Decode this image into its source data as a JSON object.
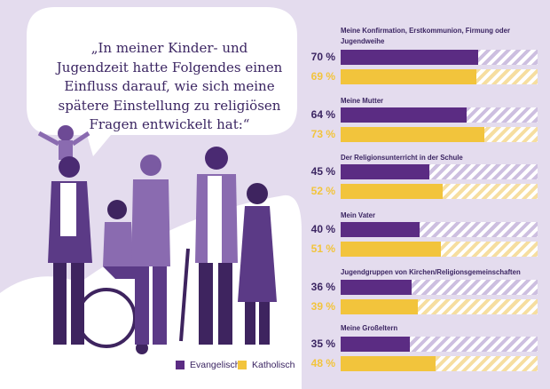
{
  "quote": "„In meiner Kinder- und Jugendzeit hatte Folgendes einen Einfluss darauf, wie sich meine spätere Einstellung zu religiösen Fragen entwickelt hat:“",
  "legend": {
    "evangelisch": "Evangelisch",
    "katholisch": "Katholisch"
  },
  "colors": {
    "evangelisch": "#5b2c83",
    "katholisch": "#f2c43c",
    "background": "#e4dcee",
    "text": "#3b2562"
  },
  "chart_data": {
    "type": "bar",
    "orientation": "horizontal",
    "unit": "%",
    "xlim": [
      0,
      100
    ],
    "series": [
      {
        "name": "Evangelisch",
        "values": [
          70,
          64,
          45,
          40,
          36,
          35
        ]
      },
      {
        "name": "Katholisch",
        "values": [
          69,
          73,
          52,
          51,
          39,
          48
        ]
      }
    ],
    "groups": [
      {
        "label": "Meine Konfirmation, Erstkommunion, Firmung oder Jugendweihe",
        "ev": 70,
        "ev_label": "70 %",
        "ka": 69,
        "ka_label": "69 %"
      },
      {
        "label": "Meine Mutter",
        "ev": 64,
        "ev_label": "64 %",
        "ka": 73,
        "ka_label": "73 %"
      },
      {
        "label": "Der Religionsunterricht in der Schule",
        "ev": 45,
        "ev_label": "45 %",
        "ka": 52,
        "ka_label": "52 %"
      },
      {
        "label": "Mein Vater",
        "ev": 40,
        "ev_label": "40 %",
        "ka": 51,
        "ka_label": "51 %"
      },
      {
        "label": "Jugendgruppen von Kirchen/Religionsgemeinschaften",
        "ev": 36,
        "ev_label": "36 %",
        "ka": 39,
        "ka_label": "39 %"
      },
      {
        "label": "Meine Großeltern",
        "ev": 35,
        "ev_label": "35 %",
        "ka": 48,
        "ka_label": "48 %"
      }
    ]
  }
}
